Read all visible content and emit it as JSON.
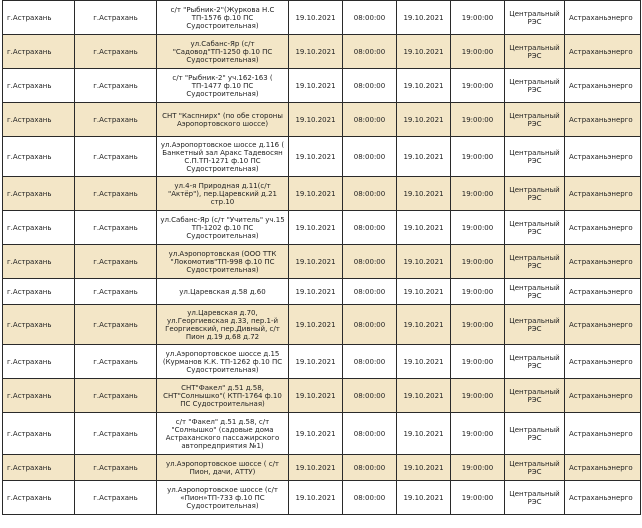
{
  "rows": [
    {
      "h": 34,
      "locality": "г.Астрахань",
      "city": "г.Астрахань",
      "address": "с/т \"Рыбник-2\"(Журкова Н.С ТП-1576 ф.10 ПС Судостроительная)",
      "date_start": "19.10.2021",
      "time_start": "08:00:00",
      "date_end": "19.10.2021",
      "time_end": "19:00:00",
      "res": "Центральный РЭС",
      "org": "Астраханьэнерго"
    },
    {
      "h": 34,
      "locality": "г.Астрахань",
      "city": "г.Астрахань",
      "address": "ул.Сабанс-Яр (с/т \"Садовод\"ТП-1250 ф.10 ПС Судостроительная)",
      "date_start": "19.10.2021",
      "time_start": "08:00:00",
      "date_end": "19.10.2021",
      "time_end": "19:00:00",
      "res": "Центральный РЭС",
      "org": "Астраханьэнерго"
    },
    {
      "h": 34,
      "locality": "г.Астрахань",
      "city": "г.Астрахань",
      "address": "с/т \"Рыбник-2\" уч.162-163 ( ТП-1477 ф.10 ПС Судостроительная)",
      "date_start": "19.10.2021",
      "time_start": "08:00:00",
      "date_end": "19.10.2021",
      "time_end": "19:00:00",
      "res": "Центральный РЭС",
      "org": "Астраханьэнерго"
    },
    {
      "h": 34,
      "locality": "г.Астрахань",
      "city": "г.Астрахань",
      "address": "СНТ \"Каспнирх\" (по обе стороны Аэропортовского шоссе)",
      "date_start": "19.10.2021",
      "time_start": "08:00:00",
      "date_end": "19.10.2021",
      "time_end": "19:00:00",
      "res": "Центральный РЭС",
      "org": "Астраханьэнерго"
    },
    {
      "h": 40,
      "locality": "г.Астрахань",
      "city": "г.Астрахань",
      "address": "ул.Аэропортовское шоссе д.116 ( Банкетный зал Аракс Тадевосян С.П.ТП-1271 ф.10 ПС Судостроительная)",
      "date_start": "19.10.2021",
      "time_start": "08:00:00",
      "date_end": "19.10.2021",
      "time_end": "19:00:00",
      "res": "Центральный РЭС",
      "org": "Астраханьэнерго"
    },
    {
      "h": 34,
      "locality": "г.Астрахань",
      "city": "г.Астрахань",
      "address": "ул.4-я Природная д.11(с/т \"Актёр\"), пер.Царевский д.21 стр.10",
      "date_start": "19.10.2021",
      "time_start": "08:00:00",
      "date_end": "19.10.2021",
      "time_end": "19:00:00",
      "res": "Центральный РЭС",
      "org": "Астраханьэнерго"
    },
    {
      "h": 34,
      "locality": "г.Астрахань",
      "city": "г.Астрахань",
      "address": "ул.Сабанс-Яр (с/т \"Учитель\" уч.15 ТП-1202 ф.10 ПС Судостроительная)",
      "date_start": "19.10.2021",
      "time_start": "08:00:00",
      "date_end": "19.10.2021",
      "time_end": "19:00:00",
      "res": "Центральный РЭС",
      "org": "Астраханьэнерго"
    },
    {
      "h": 34,
      "locality": "г.Астрахань",
      "city": "г.Астрахань",
      "address": "ул.Аэропортовская (ООО ТТК \"Локомотив\"ТП-998 ф.10 ПС Судостроительная)",
      "date_start": "19.10.2021",
      "time_start": "08:00:00",
      "date_end": "19.10.2021",
      "time_end": "19:00:00",
      "res": "Центральный РЭС",
      "org": "Астраханьэнерго"
    },
    {
      "h": 26,
      "locality": "г.Астрахань",
      "city": "г.Астрахань",
      "address": "ул.Царевская д.58 д.60",
      "date_start": "19.10.2021",
      "time_start": "08:00:00",
      "date_end": "19.10.2021",
      "time_end": "19:00:00",
      "res": "Центральный РЭС",
      "org": "Астраханьэнерго"
    },
    {
      "h": 40,
      "locality": "г.Астрахань",
      "city": "г.Астрахань",
      "address": "ул.Царевская д.70, ул.Георгиевская д.33, пер.1-й Георгиевский, пер.Дивный, с/т Пион д.19 д.68 д.72",
      "date_start": "19.10.2021",
      "time_start": "08:00:00",
      "date_end": "19.10.2021",
      "time_end": "19:00:00",
      "res": "Центральный РЭС",
      "org": "Астраханьэнерго"
    },
    {
      "h": 34,
      "locality": "г.Астрахань",
      "city": "г.Астрахань",
      "address": "ул.Аэропортовское шоссе д.15 (Курманов К.К. ТП-1262 ф.10 ПС Судостроительная)",
      "date_start": "19.10.2021",
      "time_start": "08:00:00",
      "date_end": "19.10.2021",
      "time_end": "19:00:00",
      "res": "Центральный РЭС",
      "org": "Астраханьэнерго"
    },
    {
      "h": 34,
      "locality": "г.Астрахань",
      "city": "г.Астрахань",
      "address": "СНТ\"Факел\" д.51 д.58, СНТ\"Солнышко\"( КТП-1764 ф.10 ПС Судостроительная)",
      "date_start": "19.10.2021",
      "time_start": "08:00:00",
      "date_end": "19.10.2021",
      "time_end": "19:00:00",
      "res": "Центральный РЭС",
      "org": "Астраханьэнерго"
    },
    {
      "h": 42,
      "locality": "г.Астрахань",
      "city": "г.Астрахань",
      "address": "с/т \"Факел\" д.51 д.58, с/т \"Солнышко\" (садовые дома Астраханского пассажирского автопредприятия №1)",
      "date_start": "19.10.2021",
      "time_start": "08:00:00",
      "date_end": "19.10.2021",
      "time_end": "19:00:00",
      "res": "Центральный РЭС",
      "org": "Астраханьэнерго"
    },
    {
      "h": 26,
      "locality": "г.Астрахань",
      "city": "г.Астрахань",
      "address": "ул.Аэропортовское шоссе ( с/т Пион, дачи, АТТУ)",
      "date_start": "19.10.2021",
      "time_start": "08:00:00",
      "date_end": "19.10.2021",
      "time_end": "19:00:00",
      "res": "Центральный РЭС",
      "org": "Астраханьэнерго"
    },
    {
      "h": 34,
      "locality": "г.Астрахань",
      "city": "г.Астрахань",
      "address": "ул.Аэропортовское шоссе (с/т «Пион»ТП-733 ф.10 ПС Судостроительная)",
      "date_start": "19.10.2021",
      "time_start": "08:00:00",
      "date_end": "19.10.2021",
      "time_end": "19:00:00",
      "res": "Центральный РЭС",
      "org": "Астраханьэнерго"
    }
  ]
}
